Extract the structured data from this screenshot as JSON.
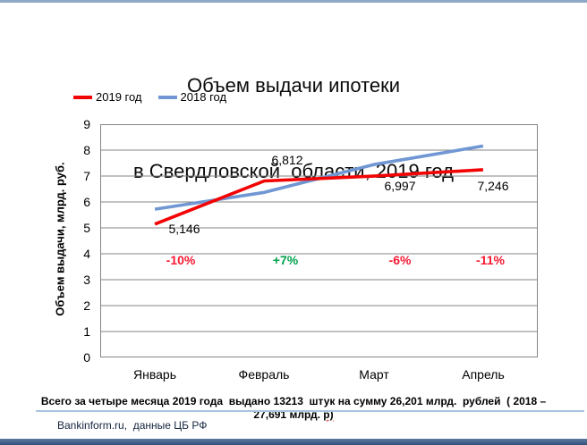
{
  "page": {
    "title_line1": "Объем выдачи ипотеки",
    "title_line2": "в Свердловской  области, 2019 год",
    "footer_note_main": "Всего за четыре месяца 2019 года  выдано 13213  штук на сумму 26,201 млрд.  рублей  ( 2018 – 27,691 млрд. ",
    "footer_note_tail": "р)",
    "source": "Bankinform.ru,  данные ЦБ РФ"
  },
  "palette": {
    "line_2019": "#f20404",
    "line_2018": "#7097d3",
    "pct_negative": "#f81932",
    "pct_positive": "#00a24d",
    "gridline": "#848484",
    "top_rule": "#8fa9c7",
    "note_rule": "#a9c4de",
    "bottom_bar_top": "#5a7aa3",
    "bottom_bar_bottom": "#35507a"
  },
  "chart_data": {
    "type": "line",
    "title": "Объем выдачи ипотеки в Свердловской области, 2019 год",
    "categories": [
      "Январь",
      "Февраль",
      "Март",
      "Апрель"
    ],
    "series": [
      {
        "name": "2019 год",
        "color_key": "line_2019",
        "values": [
          5.146,
          6.812,
          6.997,
          7.246
        ]
      },
      {
        "name": "2018 год",
        "color_key": "line_2018",
        "values": [
          5.72,
          6.37,
          7.44,
          8.16
        ]
      }
    ],
    "ylabel": "Объем выдачи, млрд. руб.",
    "xlabel": "",
    "ylim": [
      0,
      9
    ],
    "y_ticks": [
      "0",
      "1",
      "2",
      "3",
      "4",
      "5",
      "6",
      "7",
      "8",
      "9"
    ],
    "grid": true,
    "legend_position": "top-left",
    "value_labels": [
      "5,146",
      "6,812",
      "6,997",
      "7,246"
    ],
    "percent_labels": [
      {
        "text": "-10%",
        "direction": "down"
      },
      {
        "text": "+7%",
        "direction": "up"
      },
      {
        "text": "-6%",
        "direction": "down"
      },
      {
        "text": "-11%",
        "direction": "down"
      }
    ]
  }
}
